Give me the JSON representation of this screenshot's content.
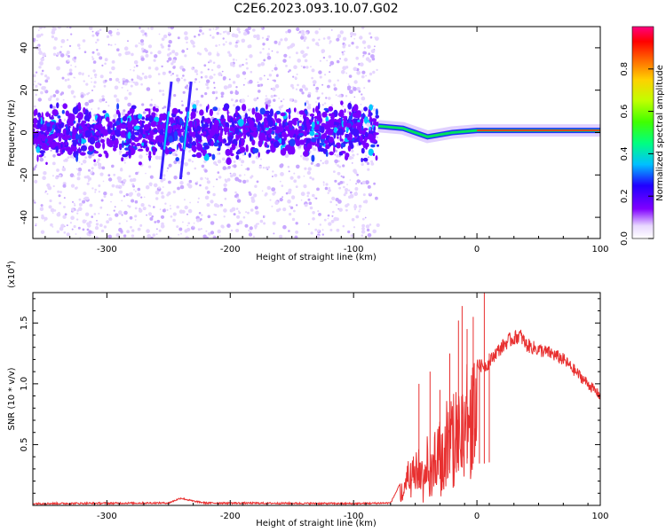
{
  "figure": {
    "title": "C2E6.2023.093.10.07.G02"
  },
  "colors": {
    "snr_line": "#e83030",
    "axis": "#000000"
  },
  "chart_data": [
    {
      "type": "heatmap",
      "xlabel": "Height of straight line (km)",
      "ylabel": "Frequency (Hz)",
      "xlim": [
        -360,
        100
      ],
      "ylim": [
        -50,
        50
      ],
      "xticks": [
        "-300",
        "-200",
        "-100",
        "0",
        "100"
      ],
      "yticks": [
        "-40",
        "-20",
        "0",
        "20",
        "40"
      ],
      "colorbar": {
        "label": "Normalized spectral amplitude",
        "range": [
          0,
          1
        ],
        "ticks": [
          "0.0",
          "0.2",
          "0.4",
          "0.6",
          "0.8"
        ]
      },
      "noise_region_x": [
        -360,
        -80
      ],
      "signal_track": {
        "x": [
          -80,
          -60,
          -40,
          -30,
          -20,
          0,
          20,
          60,
          100
        ],
        "y": [
          3,
          2,
          -2,
          -1,
          0,
          1,
          1,
          1,
          1
        ]
      },
      "spikes_x": [
        -252,
        -236
      ]
    },
    {
      "type": "line",
      "xlabel": "Height of straight line (km)",
      "ylabel": "SNR (10 * v/v)",
      "multiplier": "(x10",
      "multiplier_exp": "4",
      "multiplier_close": ")",
      "xlim": [
        -360,
        100
      ],
      "ylim": [
        0,
        17500
      ],
      "xticks": [
        "-300",
        "-200",
        "-100",
        "0",
        "100"
      ],
      "yticks": [
        "0.5",
        "1.0",
        "1.5"
      ],
      "envelope": {
        "x": [
          -360,
          -250,
          -240,
          -230,
          -220,
          -100,
          -70,
          -62,
          -55,
          -45,
          -35,
          -25,
          -15,
          -8,
          0,
          8,
          15,
          25,
          35,
          40,
          50,
          60,
          70,
          80,
          90,
          100
        ],
        "y": [
          150,
          200,
          600,
          350,
          200,
          150,
          200,
          1800,
          4000,
          5000,
          6000,
          8500,
          9500,
          11500,
          11500,
          11500,
          12500,
          13500,
          14000,
          13200,
          12800,
          12500,
          12000,
          11000,
          10000,
          9000
        ]
      },
      "spikes": {
        "x": [
          -47,
          -38,
          -30,
          -22,
          -15,
          -12,
          -8,
          -3,
          2,
          6,
          10
        ],
        "y": [
          10000,
          11000,
          9500,
          12500,
          15200,
          16400,
          14500,
          15500,
          12000,
          17500,
          12500
        ]
      }
    }
  ]
}
